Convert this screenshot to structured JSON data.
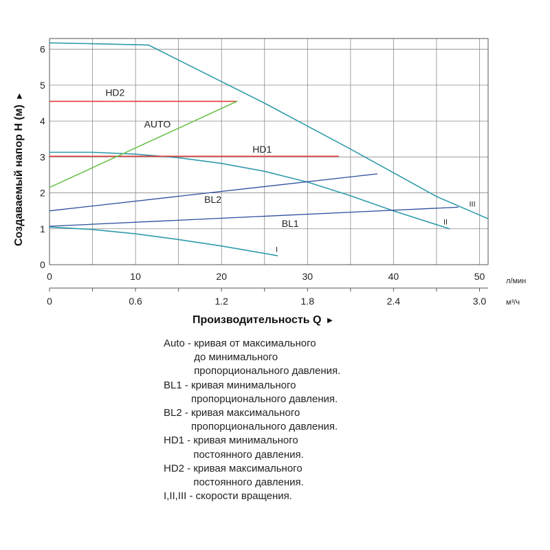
{
  "chart_data": {
    "type": "line",
    "ylabel": "Создаваемый напор H (м)",
    "ylabel_arrow": "►",
    "xlabel": "Производительность Q",
    "xlabel_arrow": "►",
    "x_unit_primary": "л/мин",
    "x_unit_secondary": "м³/ч",
    "xlim": [
      0,
      51
    ],
    "ylim": [
      0,
      6.3
    ],
    "x_ticks": [
      0,
      10,
      20,
      30,
      40,
      50
    ],
    "x_tick_labels": [
      "0",
      "10",
      "20",
      "30",
      "40",
      "50"
    ],
    "x2_ticks": [
      0,
      10,
      20,
      30,
      40,
      50
    ],
    "x2_tick_labels": [
      "0",
      "0.6",
      "1.2",
      "1.8",
      "2.4",
      "3.0"
    ],
    "y_ticks": [
      0,
      1,
      2,
      3,
      4,
      5,
      6
    ],
    "y_tick_labels": [
      "0",
      "1",
      "2",
      "3",
      "4",
      "5",
      "6"
    ],
    "grid": true,
    "series": [
      {
        "name": "III",
        "kind": "speed",
        "color": "#2e9aaa",
        "x": [
          0,
          11.5,
          15,
          20,
          25,
          30,
          35,
          40,
          45,
          51
        ],
        "y": [
          6.18,
          6.12,
          5.7,
          5.1,
          4.5,
          3.86,
          3.22,
          2.56,
          1.9,
          1.28
        ]
      },
      {
        "name": "II",
        "kind": "speed",
        "color": "#2e9aaa",
        "x": [
          0,
          5,
          10,
          15,
          20,
          25,
          30,
          35,
          40,
          46.5
        ],
        "y": [
          3.13,
          3.13,
          3.08,
          2.98,
          2.82,
          2.6,
          2.3,
          1.92,
          1.5,
          1.0
        ]
      },
      {
        "name": "I",
        "kind": "speed",
        "color": "#2e9aaa",
        "x": [
          0,
          5,
          10,
          15,
          20,
          26.5
        ],
        "y": [
          1.05,
          0.98,
          0.86,
          0.7,
          0.52,
          0.25
        ]
      },
      {
        "name": "HD2",
        "kind": "constant",
        "color": "#e23b3b",
        "x": [
          0,
          21.8
        ],
        "y": [
          4.55,
          4.55
        ]
      },
      {
        "name": "HD1",
        "kind": "constant",
        "color": "#e23b3b",
        "x": [
          0,
          33.6
        ],
        "y": [
          3.02,
          3.02
        ]
      },
      {
        "name": "AUTO",
        "kind": "auto",
        "color": "#6cc24a",
        "x": [
          0,
          21.8
        ],
        "y": [
          2.15,
          4.55
        ]
      },
      {
        "name": "BL2",
        "kind": "proportional",
        "color": "#2a4c9c",
        "x": [
          0,
          38.1
        ],
        "y": [
          1.5,
          2.53
        ]
      },
      {
        "name": "BL1",
        "kind": "proportional",
        "color": "#2a4c9c",
        "x": [
          0,
          47.5
        ],
        "y": [
          1.07,
          1.6
        ]
      }
    ],
    "annotations": [
      {
        "text": "HD2",
        "x": 6.5,
        "y": 4.7,
        "cls": "curve-label"
      },
      {
        "text": "AUTO",
        "x": 11,
        "y": 3.82,
        "cls": "curve-label"
      },
      {
        "text": "HD1",
        "x": 23.6,
        "y": 3.12,
        "cls": "curve-label"
      },
      {
        "text": "BL2",
        "x": 18,
        "y": 1.72,
        "cls": "curve-label"
      },
      {
        "text": "BL1",
        "x": 27,
        "y": 1.05,
        "cls": "curve-label"
      },
      {
        "text": "I",
        "x": 26.3,
        "y": 0.35,
        "cls": "speed-label"
      },
      {
        "text": "II",
        "x": 45.8,
        "y": 1.12,
        "cls": "speed-label"
      },
      {
        "text": "III",
        "x": 48.8,
        "y": 1.62,
        "cls": "speed-label"
      }
    ]
  },
  "legend": [
    {
      "key": "Auto - ",
      "lines": [
        "кривая от максимального",
        "до минимального",
        "пропорционального давления."
      ]
    },
    {
      "key": "BL1 - ",
      "lines": [
        "кривая минимального",
        "пропорционального давления."
      ]
    },
    {
      "key": "BL2 - ",
      "lines": [
        "кривая максимального",
        "пропорционального давления."
      ]
    },
    {
      "key": "HD1 - ",
      "lines": [
        "кривая минимального",
        "постоянного давления."
      ]
    },
    {
      "key": "HD2 - ",
      "lines": [
        "кривая максимального",
        "постоянного давления."
      ]
    },
    {
      "key": "I,II,III - ",
      "lines": [
        "скорости вращения."
      ]
    }
  ]
}
